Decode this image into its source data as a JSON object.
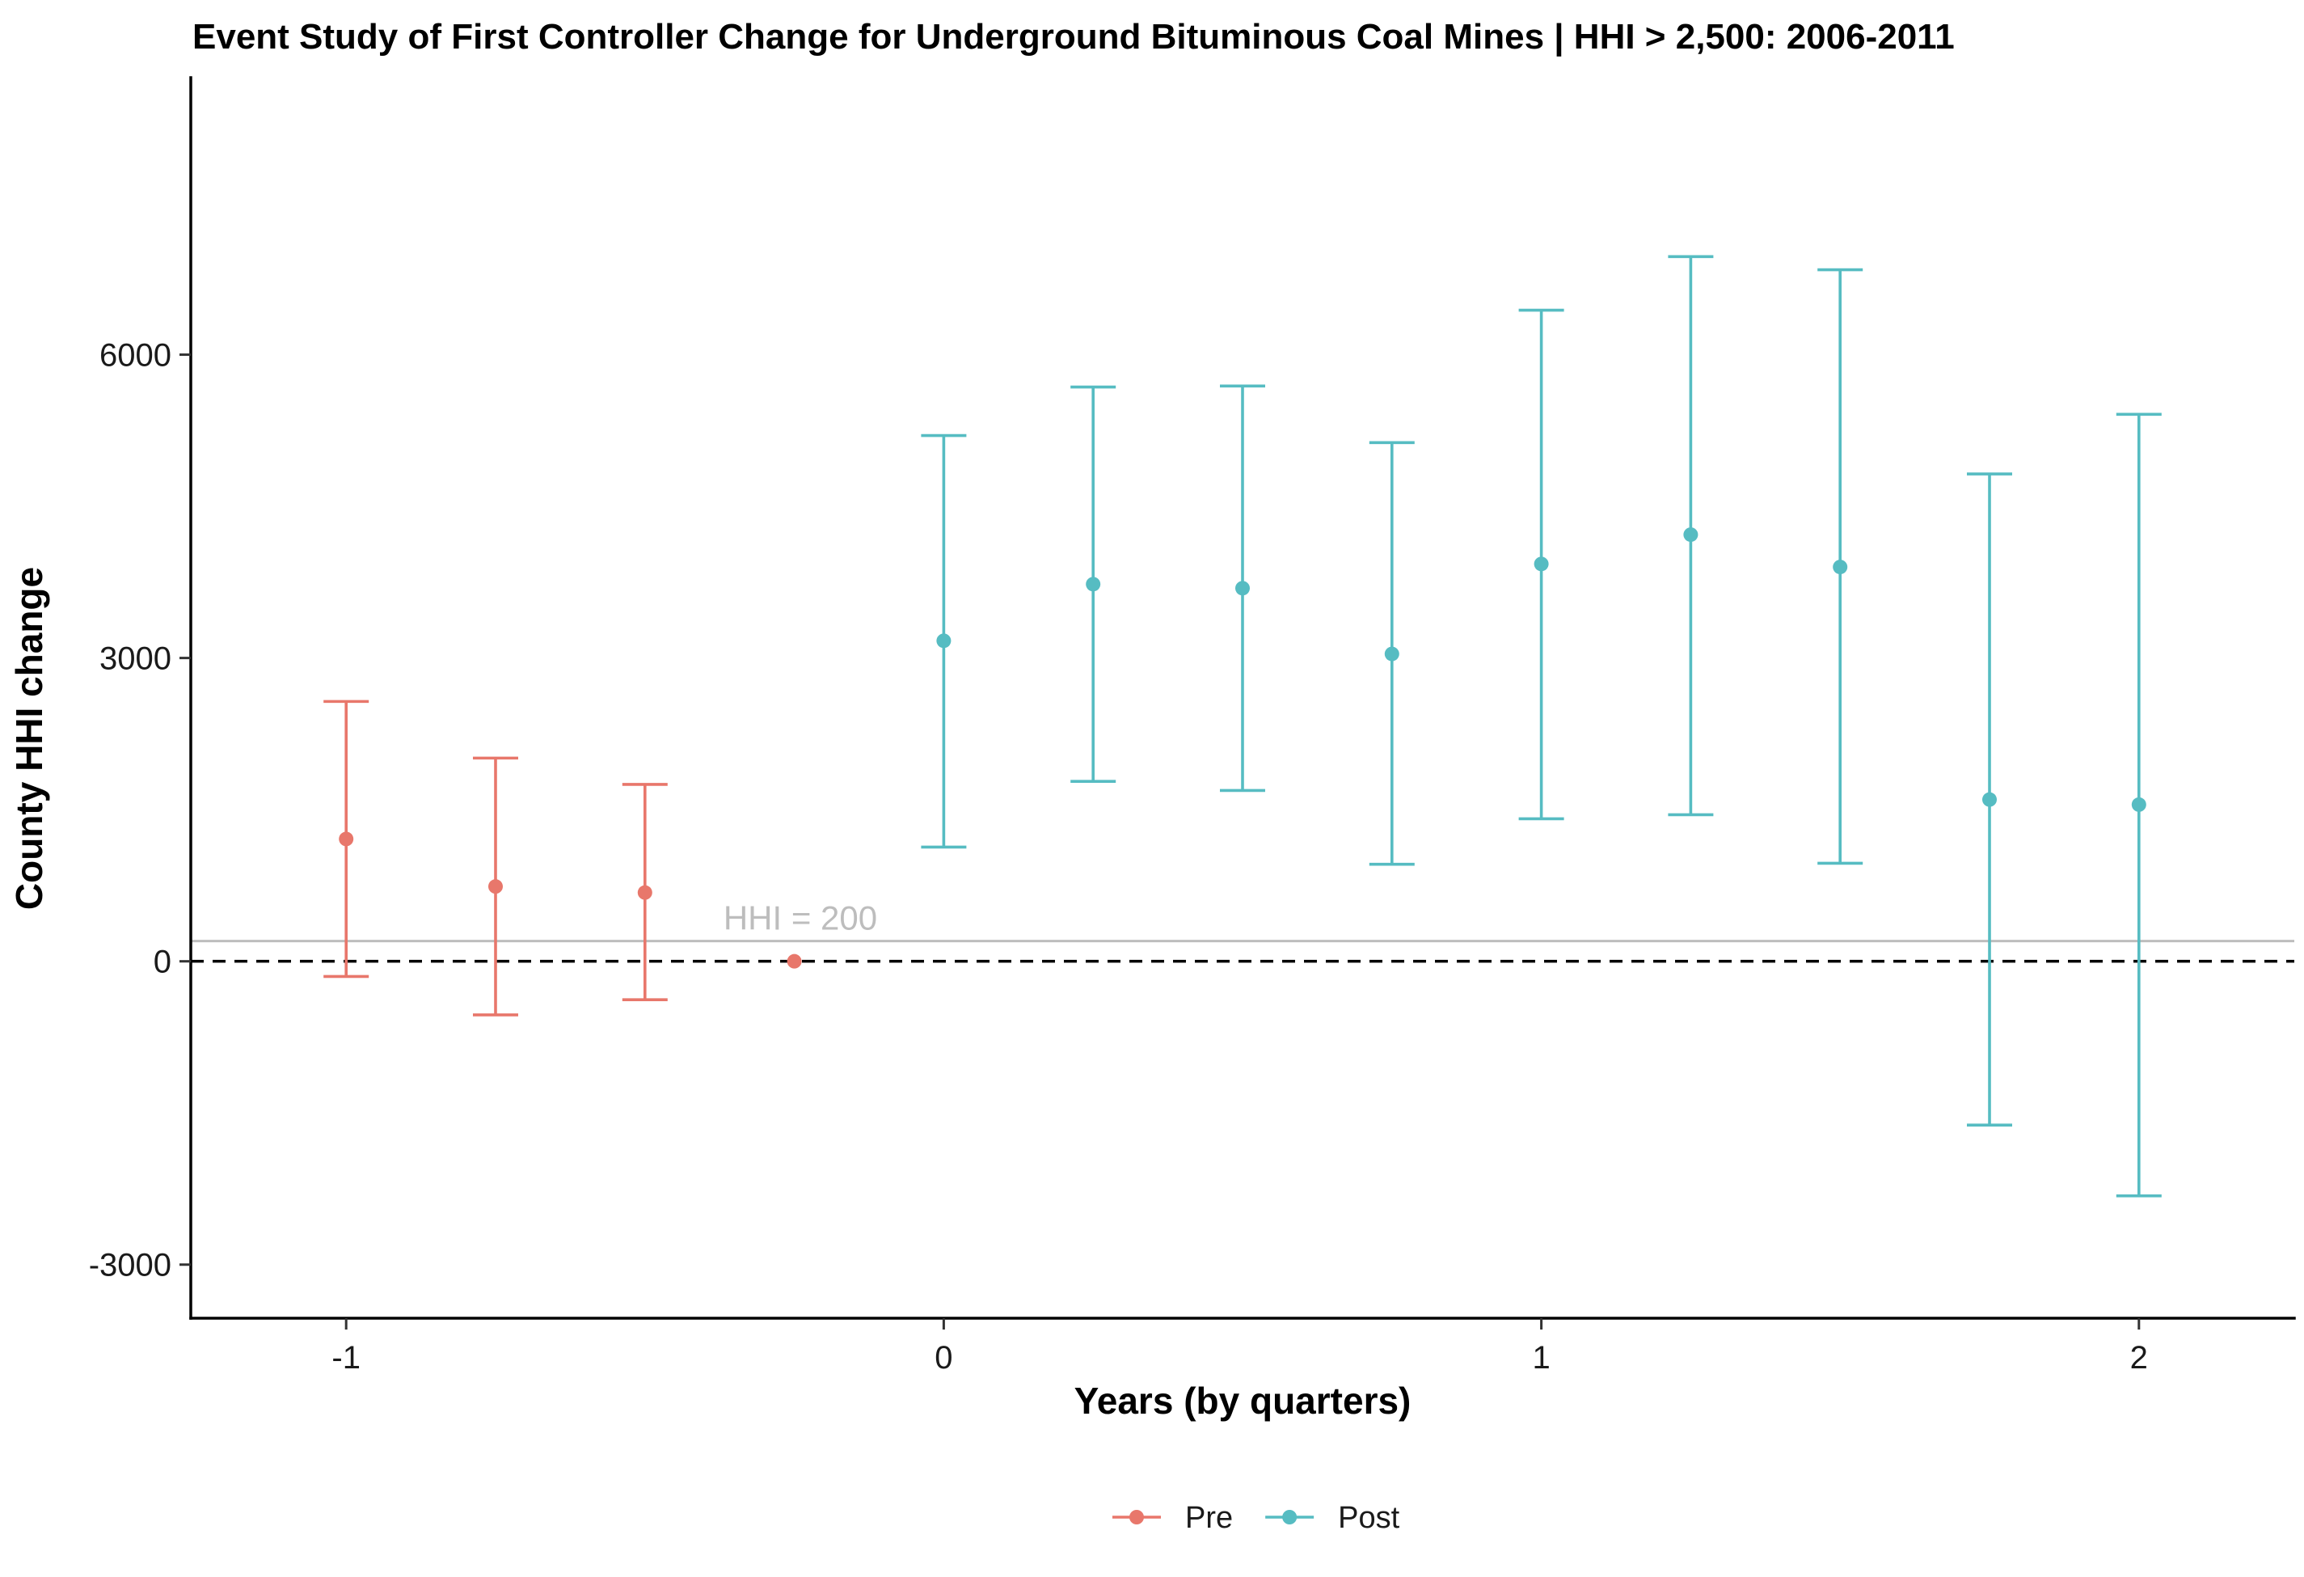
{
  "chart_data": {
    "type": "scatter",
    "title": "Event Study of First Controller Change for Underground Bituminous Coal Mines | HHI > 2,500: 2006-2011",
    "xlabel": "Years (by quarters)",
    "ylabel": "County HHI change",
    "xlim": [
      -1.26,
      2.26
    ],
    "ylim": [
      -3530,
      8740
    ],
    "x_ticks": [
      -1,
      0,
      1,
      2
    ],
    "x_tick_labels": [
      "-1",
      "0",
      "1",
      "2"
    ],
    "y_ticks": [
      -3000,
      0,
      3000,
      6000
    ],
    "y_tick_labels": [
      "-3000",
      "0",
      "3000",
      "6000"
    ],
    "grid": false,
    "legend_position": "bottom",
    "series": [
      {
        "name": "Pre",
        "color": "#E8776B",
        "points": [
          {
            "x": -1.0,
            "y": 1210,
            "lo": -150,
            "hi": 2570
          },
          {
            "x": -0.75,
            "y": 740,
            "lo": -530,
            "hi": 2010
          },
          {
            "x": -0.5,
            "y": 680,
            "lo": -380,
            "hi": 1750
          },
          {
            "x": -0.25,
            "y": 0,
            "lo": 0,
            "hi": 0
          }
        ]
      },
      {
        "name": "Post",
        "color": "#56BCC2",
        "points": [
          {
            "x": 0.0,
            "y": 3170,
            "lo": 1130,
            "hi": 5200
          },
          {
            "x": 0.25,
            "y": 3730,
            "lo": 1780,
            "hi": 5680
          },
          {
            "x": 0.5,
            "y": 3690,
            "lo": 1690,
            "hi": 5690
          },
          {
            "x": 0.75,
            "y": 3040,
            "lo": 960,
            "hi": 5130
          },
          {
            "x": 1.0,
            "y": 3930,
            "lo": 1410,
            "hi": 6440
          },
          {
            "x": 1.25,
            "y": 4220,
            "lo": 1450,
            "hi": 6970
          },
          {
            "x": 1.5,
            "y": 3900,
            "lo": 970,
            "hi": 6840
          },
          {
            "x": 1.75,
            "y": 1600,
            "lo": -1620,
            "hi": 4820
          },
          {
            "x": 2.0,
            "y": 1550,
            "lo": -2320,
            "hi": 5410
          }
        ]
      }
    ],
    "reference_lines": [
      {
        "y": 0,
        "style": "dashed",
        "color": "#000000",
        "label": ""
      },
      {
        "y": 200,
        "style": "solid",
        "color": "#bdbdbd",
        "label": "HHI = 200",
        "label_x": -0.24
      }
    ]
  }
}
